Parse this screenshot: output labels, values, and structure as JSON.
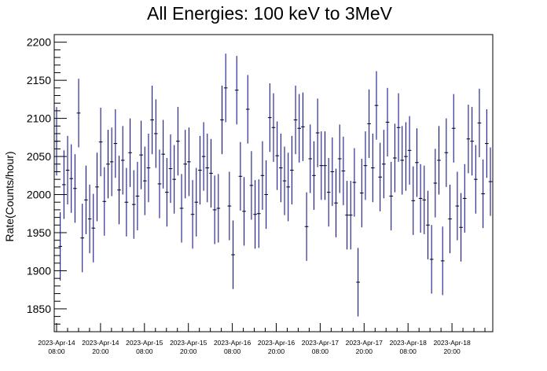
{
  "chart_data": {
    "type": "scatter",
    "title": "All Energies:  100 keV to 3MeV",
    "xlabel": "",
    "ylabel": "Rate(Counts/hour)",
    "ylim": [
      1820,
      2210
    ],
    "yticks": [
      1850,
      1900,
      1950,
      2000,
      2050,
      2100,
      2150,
      2200
    ],
    "xtick_labels": [
      [
        "2023-Apr-14",
        "08:00"
      ],
      [
        "2023-Apr-14",
        "20:00"
      ],
      [
        "2023-Apr-15",
        "08:00"
      ],
      [
        "2023-Apr-15",
        "20:00"
      ],
      [
        "2023-Apr-16",
        "08:00"
      ],
      [
        "2023-Apr-16",
        "20:00"
      ],
      [
        "2023-Apr-17",
        "08:00"
      ],
      [
        "2023-Apr-17",
        "20:00"
      ],
      [
        "2023-Apr-18",
        "08:00"
      ],
      [
        "2023-Apr-18",
        "20:00"
      ]
    ],
    "marker_color": "#000080",
    "grid": false,
    "series": [
      {
        "error": 45,
        "values": [
          2070,
          1932,
          2013,
          2032,
          2021,
          2008,
          2107,
          1943,
          1993,
          1968,
          1956,
          2010,
          2069,
          1991,
          2040,
          2043,
          2067,
          2006,
          2045,
          1990,
          2055,
          1987,
          1998,
          2052,
          2018,
          2035,
          2098,
          2080,
          2014,
          2053,
          2003,
          2034,
          2020,
          2070,
          1982,
          2040,
          2043,
          1974,
          1990,
          2032,
          2050,
          2035,
          2028,
          1980,
          1982,
          2098,
          2140,
          1985,
          1921,
          2137,
          2024,
          1978,
          2112,
          2012,
          1974,
          1975,
          2025,
          2000,
          2101,
          2088,
          2051,
          2035,
          2018,
          2010,
          2032,
          2098,
          2087,
          2089,
          1958,
          2047,
          2025,
          2081,
          2038,
          2038,
          2003,
          2030,
          1989,
          2047,
          2031,
          1973,
          1973,
          2016,
          1885,
          2002,
          2038,
          2093,
          2035,
          2117,
          2023,
          2040,
          2095,
          1998,
          2048,
          2088,
          2045,
          2050,
          2058,
          1992,
          2042,
          1995,
          1993,
          1960,
          1915,
          2015,
          2045,
          1913,
          2055,
          1968,
          2087,
          1985,
          1957,
          1995,
          2073,
          2070,
          2020,
          2094,
          2001,
          2067,
          2017
        ]
      }
    ]
  }
}
